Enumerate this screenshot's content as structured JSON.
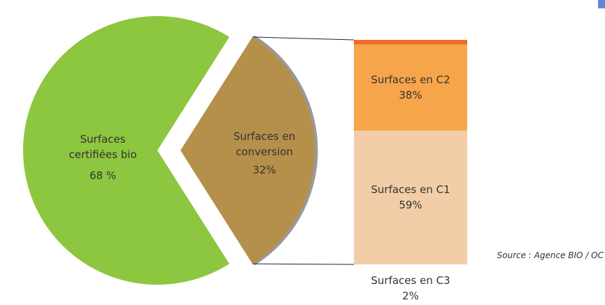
{
  "chart_data": {
    "type": "pie",
    "categories": [
      "Surfaces certifiées bio",
      "Surfaces en conversion"
    ],
    "values": [
      68,
      32
    ],
    "value_labels": [
      "68 %",
      "32%"
    ],
    "colors": [
      "#8dc63f",
      "#b5904a"
    ],
    "breakdown": {
      "type": "bar",
      "categories": [
        "Surfaces en C1",
        "Surfaces en C2",
        "Surfaces en C3"
      ],
      "values": [
        59,
        38,
        2
      ],
      "value_labels": [
        "59%",
        "38%",
        "2%"
      ],
      "colors": [
        "#f2cda7",
        "#f7a54a",
        "#f06a25"
      ]
    },
    "source": "Source : Agence BIO / OC"
  }
}
